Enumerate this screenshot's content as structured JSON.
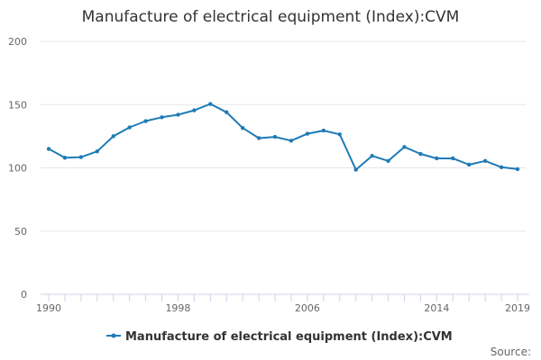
{
  "chart_data": {
    "type": "line",
    "title": "Manufacture of electrical equipment (Index):CVM",
    "xlabel": "",
    "ylabel": "",
    "ylim": [
      0,
      200
    ],
    "yticks": [
      0,
      50,
      100,
      150,
      200
    ],
    "xlim": [
      1990,
      2019
    ],
    "xticks": [
      1990,
      1998,
      2006,
      2014,
      2019
    ],
    "grid": true,
    "legend_position": "bottom-center",
    "colors": {
      "series": "#1f7bb6"
    },
    "series": [
      {
        "name": "Manufacture of electrical equipment (Index):CVM",
        "x": [
          1990,
          1991,
          1992,
          1993,
          1994,
          1995,
          1996,
          1997,
          1998,
          1999,
          2000,
          2001,
          2002,
          2003,
          2004,
          2005,
          2006,
          2007,
          2008,
          2009,
          2010,
          2011,
          2012,
          2013,
          2014,
          2015,
          2016,
          2017,
          2018,
          2019
        ],
        "values": [
          115,
          108,
          108.5,
          113,
          125,
          132,
          137,
          140,
          142,
          145.5,
          150.5,
          144,
          131.5,
          123.5,
          124.5,
          121.5,
          127,
          129.5,
          126.5,
          98.5,
          109.5,
          105.5,
          116.5,
          111,
          107.5,
          107.5,
          102.5,
          105.5,
          100.5,
          99
        ]
      }
    ],
    "source_label": "Source:"
  }
}
